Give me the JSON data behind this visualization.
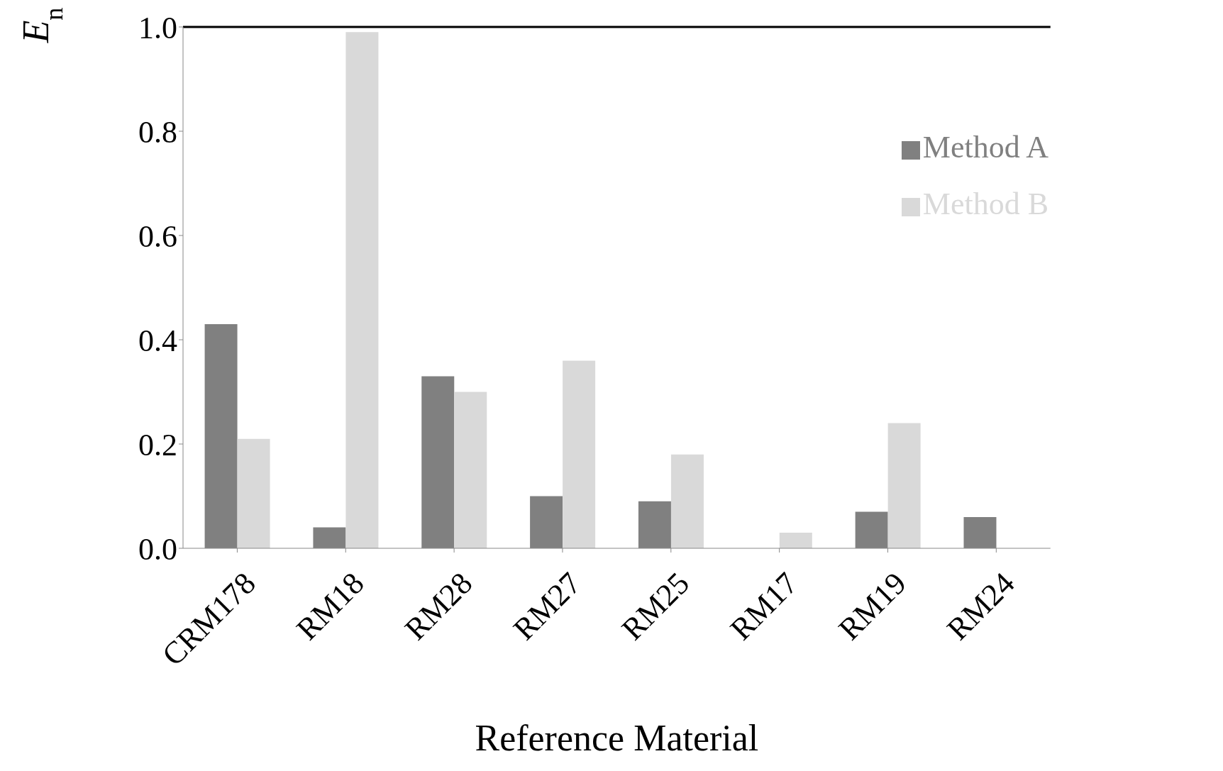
{
  "chart_data": {
    "type": "bar",
    "xlabel": "Reference Material",
    "ylabel": "E$_{n}$",
    "categories": [
      "CRM178",
      "RM18",
      "RM28",
      "RM27",
      "RM25",
      "RM17",
      "RM19",
      "RM24"
    ],
    "series": [
      {
        "name": "Method A",
        "color": "#808080",
        "values": [
          0.43,
          0.04,
          0.33,
          0.1,
          0.09,
          0.0,
          0.07,
          0.06
        ]
      },
      {
        "name": "Method B",
        "color": "#d9d9d9",
        "values": [
          0.21,
          0.99,
          0.3,
          0.36,
          0.18,
          0.03,
          0.24,
          0.0
        ]
      }
    ],
    "ylim": [
      0,
      1
    ],
    "yticks": [
      {
        "value": 0,
        "label": "0.0"
      },
      {
        "value": 0.2,
        "label": "0.2"
      },
      {
        "value": 0.4,
        "label": "0.4"
      },
      {
        "value": 0.6,
        "label": "0.6"
      },
      {
        "value": 0.8,
        "label": "0.8"
      },
      {
        "value": 1,
        "label": "1.0"
      }
    ],
    "ref_lines": [
      {
        "axis": "y",
        "value": 1,
        "color": "#000000"
      }
    ],
    "grid": false,
    "legend": "top right"
  }
}
